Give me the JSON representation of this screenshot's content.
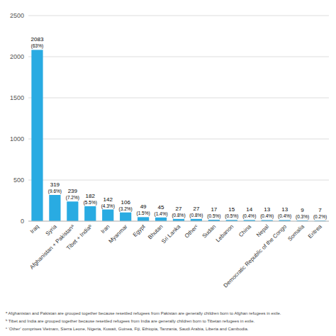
{
  "chart_data": {
    "type": "bar",
    "categories": [
      "Iraq",
      "Syria",
      "Afghanistan + Pakistanᵃ",
      "Tibet + Indiaᵇ",
      "Iran",
      "Myanmar",
      "Egypt",
      "Bhutan",
      "Sri Lanka",
      "Otherᶜ",
      "Sudan",
      "Lebanon",
      "China",
      "Nepal",
      "Democratic Republic of the Congo",
      "Somalia",
      "Eritrea"
    ],
    "values": [
      2083,
      319,
      239,
      182,
      142,
      106,
      49,
      45,
      27,
      27,
      17,
      15,
      14,
      13,
      13,
      9,
      7
    ],
    "percentage_labels": [
      "(63%)",
      "(9.6%)",
      "(7.2%)",
      "(5.5%)",
      "(4.3%)",
      "(3.2%)",
      "(1.5%)",
      "(1.4%)",
      "(0.8%)",
      "(0.8%)",
      "(0.5%)",
      "(0.5%)",
      "(0.4%)",
      "(0.4%)",
      "(0.4%)",
      "(0.3%)",
      "(0.2%)"
    ],
    "color": "#29ABE2",
    "ylim": [
      0,
      2500
    ],
    "yticks": [
      0,
      500,
      1000,
      1500,
      2000,
      2500
    ],
    "grid": true,
    "data_labels": true,
    "footnotes": [
      "ᵃ Afghanistan and Pakistan are grouped together because resettled refugees from Pakistan are generally children born to Afghan refugees in exile.",
      "ᵇ Tibet and India are grouped together because resettled refugees from India are generally children born to Tibetan refugees in exile.",
      "ᶜ ‘Other’ comprises Vietnam, Sierra Leone, Nigeria, Kuwait, Guinea, Fiji, Ethiopia, Tanzania, Saudi Arabia, Liberia and Cambodia."
    ]
  }
}
